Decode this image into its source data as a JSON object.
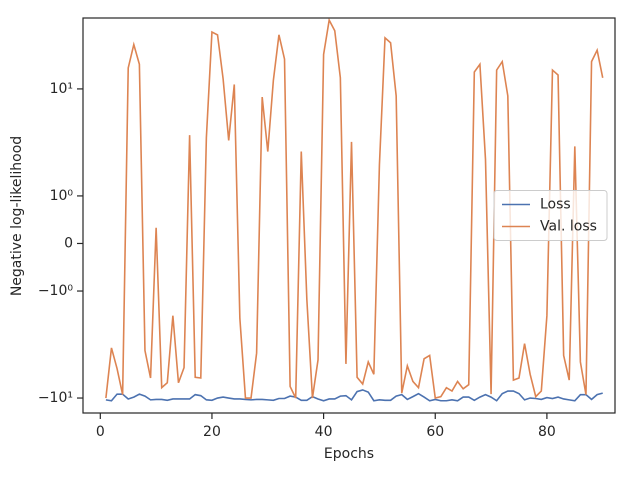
{
  "chart_data": {
    "type": "line",
    "xlabel": "Epochs",
    "ylabel": "Negative log-likelihood",
    "yscale": "symlog",
    "linthresh": 1,
    "linscale": 0.4,
    "xlim": [
      -3.1,
      92.2
    ],
    "ylim": [
      -13.8,
      46
    ],
    "xticks": [
      0,
      20,
      40,
      60,
      80
    ],
    "yticks": [
      {
        "value": -10,
        "label": "−10¹"
      },
      {
        "value": -1,
        "label": "−10⁰"
      },
      0,
      {
        "value": 1,
        "label": "10⁰"
      },
      {
        "value": 10,
        "label": "10¹"
      }
    ],
    "legend": "center right",
    "x": [
      1,
      2,
      3,
      4,
      5,
      6,
      7,
      8,
      9,
      10,
      11,
      12,
      13,
      14,
      15,
      16,
      17,
      18,
      19,
      20,
      21,
      22,
      23,
      24,
      25,
      26,
      27,
      28,
      29,
      30,
      31,
      32,
      33,
      34,
      35,
      36,
      37,
      38,
      39,
      40,
      41,
      42,
      43,
      44,
      45,
      46,
      47,
      48,
      49,
      50,
      51,
      52,
      53,
      54,
      55,
      56,
      57,
      58,
      59,
      60,
      61,
      62,
      63,
      64,
      65,
      66,
      67,
      68,
      69,
      70,
      71,
      72,
      73,
      74,
      75,
      76,
      77,
      78,
      79,
      80,
      81,
      82,
      83,
      84,
      85,
      86,
      87,
      88,
      89,
      90
    ],
    "series": [
      {
        "name": "Loss",
        "color": "#4c72b0",
        "values": [
          -10.4,
          -10.6,
          -9.2,
          -9.2,
          -10.2,
          -9.8,
          -9.2,
          -9.6,
          -10.4,
          -10.3,
          -10.3,
          -10.5,
          -10.2,
          -10.2,
          -10.2,
          -10.2,
          -9.3,
          -9.5,
          -10.4,
          -10.5,
          -10,
          -9.8,
          -10,
          -10.2,
          -10.2,
          -10.3,
          -10.4,
          -10.3,
          -10.3,
          -10.4,
          -10.5,
          -10.1,
          -10.1,
          -9.6,
          -9.8,
          -10.5,
          -10.5,
          -9.7,
          -10.2,
          -10.6,
          -10.2,
          -10.2,
          -9.6,
          -9.5,
          -10.4,
          -8.7,
          -8.4,
          -8.8,
          -10.6,
          -10.4,
          -10.5,
          -10.5,
          -9.6,
          -9.3,
          -10.3,
          -9.7,
          -9.1,
          -9.8,
          -10.6,
          -10.3,
          -10.6,
          -10.6,
          -10.4,
          -10.6,
          -9.8,
          -9.8,
          -10.5,
          -9.8,
          -9.3,
          -9.8,
          -10.6,
          -9.1,
          -8.6,
          -8.6,
          -9.1,
          -10.4,
          -10,
          -10.1,
          -10.3,
          -9.9,
          -10.1,
          -9.8,
          -10.2,
          -10.4,
          -10.6,
          -9.3,
          -9.3,
          -10.3,
          -9.3,
          -9
        ]
      },
      {
        "name": "Val. loss",
        "color": "#dd8452",
        "values": [
          -10,
          -3.4,
          -5.3,
          -9.3,
          15.7,
          26,
          17,
          -3.6,
          -6.5,
          0.33,
          -8,
          -7.2,
          -1.7,
          -7.2,
          -5.2,
          3.7,
          -6.4,
          -6.5,
          3.5,
          34,
          32,
          12.4,
          3.3,
          11,
          -1.8,
          -10,
          -10,
          -3.8,
          8.4,
          2.6,
          12,
          32,
          19,
          -7.8,
          -10,
          2.6,
          -1.2,
          -10,
          -4.4,
          21,
          44,
          35,
          12.7,
          -4.8,
          3.2,
          -6.4,
          -7.4,
          -4.6,
          -6,
          1.95,
          30,
          27,
          8.6,
          -9,
          -5,
          -7,
          -8,
          -4.3,
          -4,
          -10,
          -9.7,
          -8,
          -8.6,
          -7,
          -8.2,
          -7.5,
          14.4,
          17,
          2.2,
          -9.2,
          15,
          18,
          8.6,
          -6.8,
          -6.5,
          -3.1,
          -6,
          -9.7,
          -8.6,
          -1.7,
          15,
          13.5,
          -4,
          -6.8,
          2.9,
          -4.6,
          -9.3,
          18,
          23,
          12.7
        ]
      }
    ]
  }
}
